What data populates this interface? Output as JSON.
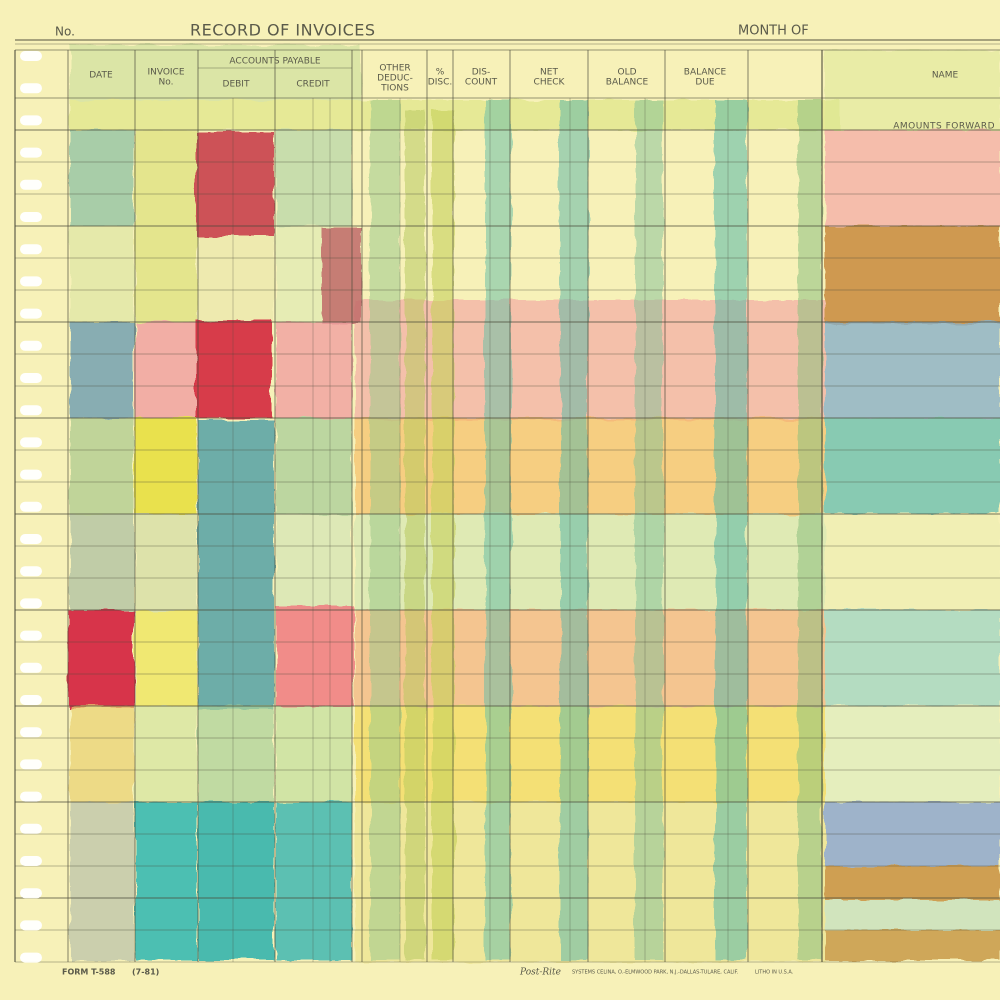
{
  "header": {
    "number_label": "No.",
    "title": "RECORD OF INVOICES",
    "month_label": "MONTH OF"
  },
  "group_label": "ACCOUNTS PAYABLE",
  "columns": [
    {
      "lines": [
        "DATE"
      ]
    },
    {
      "lines": [
        "INVOICE",
        "No."
      ]
    },
    {
      "lines": [
        "DEBIT"
      ]
    },
    {
      "lines": [
        "CREDIT"
      ]
    },
    {
      "lines": [
        "OTHER",
        "DEDUC-",
        "TIONS"
      ]
    },
    {
      "lines": [
        "%",
        "DISC."
      ]
    },
    {
      "lines": [
        "DIS-",
        "COUNT"
      ]
    },
    {
      "lines": [
        "NET",
        "CHECK"
      ]
    },
    {
      "lines": [
        "OLD",
        "BALANCE"
      ]
    },
    {
      "lines": [
        "BALANCE",
        "DUE"
      ]
    },
    {
      "lines": [
        "NAME"
      ]
    }
  ],
  "amounts_forward": "AMOUNTS FORWARD",
  "footer": {
    "form": "FORM T-588",
    "revision": "(7-81)",
    "brand": "Post-Rite",
    "printer": "SYSTEMS CELINA, O.-ELMWOOD PARK, N.J.-DALLAS-TULARE, CALIF.",
    "litho": "LITHO IN U.S.A."
  }
}
